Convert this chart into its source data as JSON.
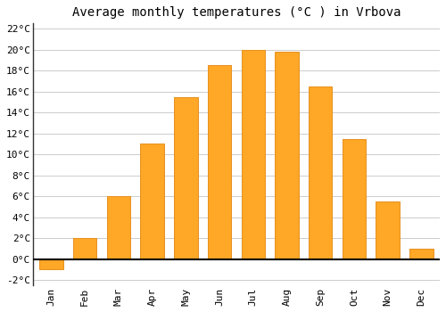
{
  "title": "Average monthly temperatures (°C ) in Vrbova",
  "months": [
    "Jan",
    "Feb",
    "Mar",
    "Apr",
    "May",
    "Jun",
    "Jul",
    "Aug",
    "Sep",
    "Oct",
    "Nov",
    "Dec"
  ],
  "values": [
    -1.0,
    2.0,
    6.0,
    11.0,
    15.5,
    18.5,
    20.0,
    19.8,
    16.5,
    11.5,
    5.5,
    1.0
  ],
  "bar_color": "#FFA726",
  "bar_edge_color": "#E69020",
  "background_color": "#ffffff",
  "grid_color": "#cccccc",
  "ylim": [
    -2.5,
    22.5
  ],
  "yticks": [
    -2,
    0,
    2,
    4,
    6,
    8,
    10,
    12,
    14,
    16,
    18,
    20,
    22
  ],
  "ytick_labels": [
    "-2°C",
    "0°C",
    "2°C",
    "4°C",
    "6°C",
    "8°C",
    "10°C",
    "12°C",
    "14°C",
    "16°C",
    "18°C",
    "20°C",
    "22°C"
  ],
  "title_fontsize": 10,
  "tick_fontsize": 8,
  "font_family": "monospace"
}
